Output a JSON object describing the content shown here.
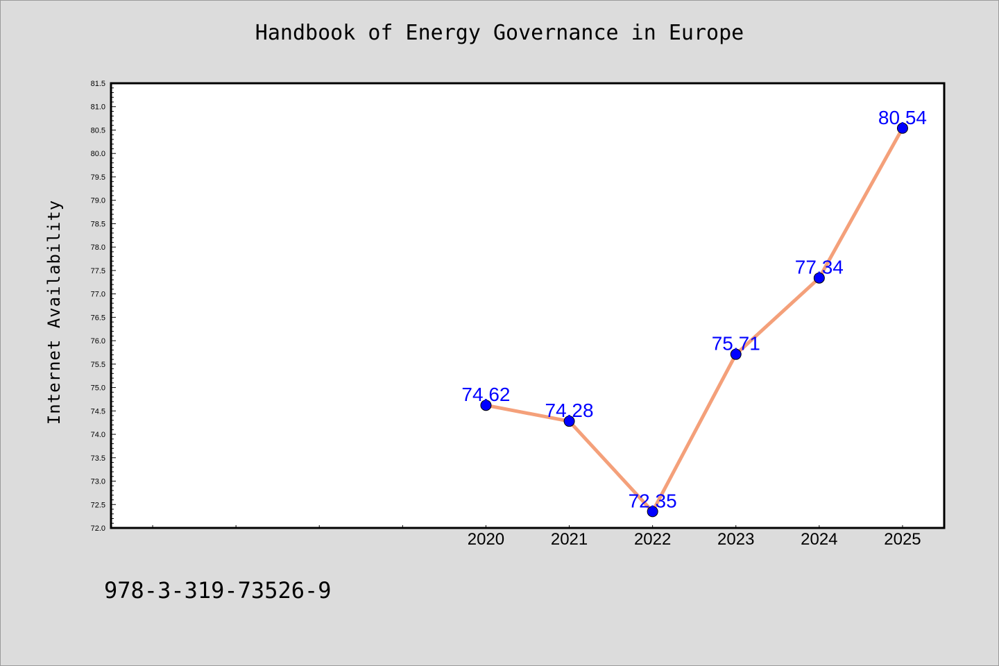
{
  "title": "Handbook of Energy Governance in Europe",
  "footer": "978-3-319-73526-9",
  "colors": {
    "background": "#dcdcdc",
    "plot_background": "#ffffff",
    "line": "#f4a07a",
    "marker": "#0000ff",
    "data_label": "#0000ff"
  },
  "chart_data": {
    "type": "line",
    "title": "Handbook of Energy Governance in Europe",
    "xlabel": "",
    "ylabel": "Internet Availability",
    "x": [
      2020,
      2021,
      2022,
      2023,
      2024,
      2025
    ],
    "x_tick_labels": [
      "2020",
      "2021",
      "2022",
      "2023",
      "2024",
      "2025"
    ],
    "xlim": [
      2015.5,
      2025.5
    ],
    "values": [
      74.62,
      74.28,
      72.35,
      75.71,
      77.34,
      80.54
    ],
    "data_labels": [
      "74.62",
      "74.28",
      "72.35",
      "75.71",
      "77.34",
      "80.54"
    ],
    "ylim": [
      72.0,
      81.5
    ],
    "y_ticks": [
      "72.0",
      "72.5",
      "73.0",
      "73.5",
      "74.0",
      "74.5",
      "75.0",
      "75.5",
      "76.0",
      "76.5",
      "77.0",
      "77.5",
      "78.0",
      "78.5",
      "79.0",
      "79.5",
      "80.0",
      "80.5",
      "81.0",
      "81.5"
    ],
    "grid": false,
    "legend": "none"
  }
}
